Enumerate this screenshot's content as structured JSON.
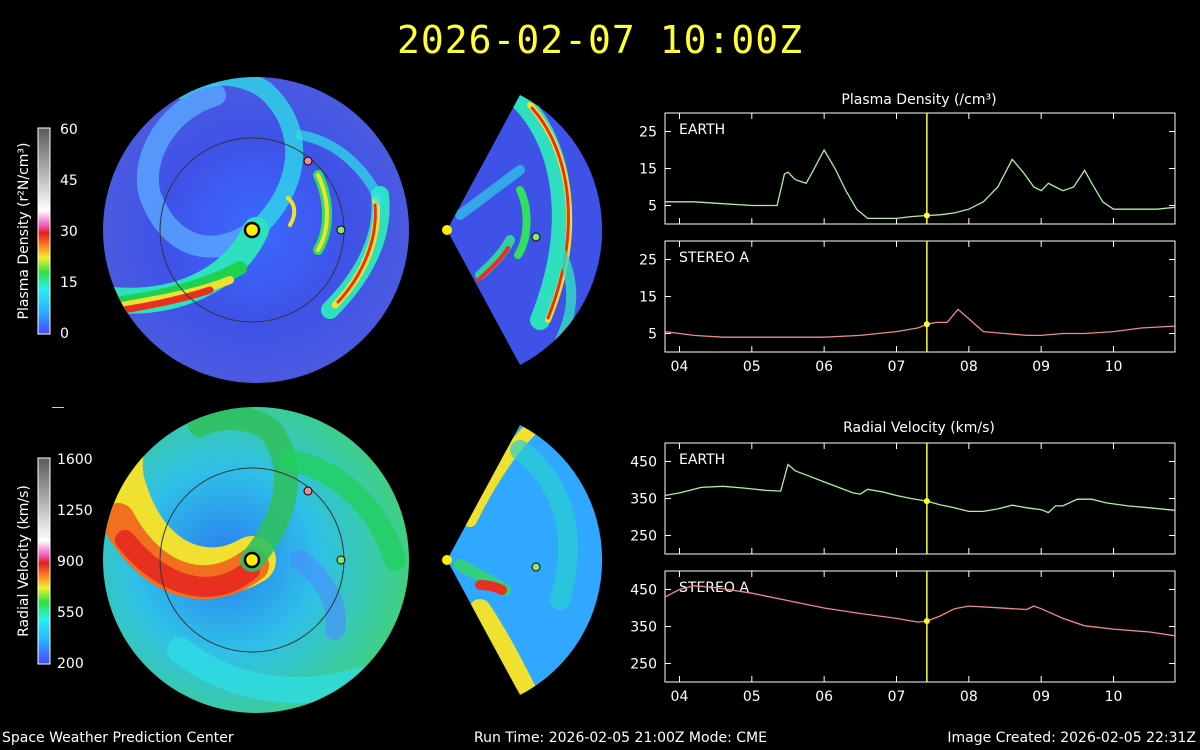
{
  "header": {
    "datetime": "2026-02-07 10:00Z"
  },
  "footer": {
    "org": "Space Weather Prediction Center",
    "run_info": "Run Time: 2026-02-05 21:00Z  Mode: CME",
    "created": "Image Created: 2026-02-05 22:31Z"
  },
  "colorbars": [
    {
      "label": "Plasma Density (r²N/cm³)",
      "ticks": [
        "60",
        "45",
        "30",
        "15",
        "0"
      ]
    },
    {
      "label": "Radial Velocity (km/s)",
      "ticks": [
        "1600",
        "1250",
        "900",
        "550",
        "200"
      ]
    }
  ],
  "colors": {
    "title": "#ffff33",
    "earth_line": "#aef0a0",
    "stereo_line": "#ee8a8a",
    "current_time_marker": "#ffff33",
    "earth_marker": "#8be36b",
    "stereo_marker": "#f08c8c"
  },
  "chart_data": [
    {
      "type": "line",
      "title": "Plasma Density (/cm³)",
      "panel": "EARTH",
      "ylim": [
        0,
        30
      ],
      "yticks": [
        5,
        15,
        25
      ],
      "xlim": [
        3.8,
        10.85
      ],
      "xticks": [
        "04",
        "05",
        "06",
        "07",
        "08",
        "09",
        "10"
      ],
      "current_time": 7.42,
      "series": [
        {
          "name": "EARTH",
          "x": [
            3.8,
            4.2,
            4.6,
            5.0,
            5.35,
            5.45,
            5.5,
            5.6,
            5.75,
            5.85,
            6.0,
            6.15,
            6.3,
            6.45,
            6.6,
            6.8,
            7.0,
            7.2,
            7.42,
            7.6,
            7.8,
            8.0,
            8.2,
            8.4,
            8.6,
            8.75,
            8.9,
            9.0,
            9.1,
            9.2,
            9.3,
            9.45,
            9.6,
            9.7,
            9.85,
            10.0,
            10.3,
            10.6,
            10.85
          ],
          "y": [
            6,
            6,
            5.5,
            5,
            5,
            13.5,
            14,
            12,
            11,
            14.5,
            20,
            15,
            9,
            4,
            1.5,
            1.5,
            1.5,
            2,
            2.3,
            2.5,
            3,
            4,
            6,
            10,
            17.5,
            14,
            10,
            9,
            11,
            10,
            9,
            10,
            14.5,
            11,
            6,
            4,
            4,
            4,
            4.5
          ]
        }
      ]
    },
    {
      "type": "line",
      "panel": "STEREO A",
      "ylim": [
        0,
        30
      ],
      "yticks": [
        5,
        15,
        25
      ],
      "xlim": [
        3.8,
        10.85
      ],
      "xticks": [
        "04",
        "05",
        "06",
        "07",
        "08",
        "09",
        "10"
      ],
      "current_time": 7.42,
      "series": [
        {
          "name": "STEREO A",
          "x": [
            3.8,
            4.2,
            4.6,
            5.0,
            5.5,
            6.0,
            6.5,
            7.0,
            7.3,
            7.42,
            7.55,
            7.7,
            7.85,
            8.0,
            8.2,
            8.5,
            8.8,
            9.0,
            9.3,
            9.6,
            10.0,
            10.4,
            10.85
          ],
          "y": [
            5.5,
            4.5,
            4,
            4,
            4,
            4,
            4.5,
            5.5,
            6.5,
            7.5,
            8,
            8,
            11.5,
            9,
            5.5,
            5,
            4.5,
            4.5,
            5,
            5,
            5.5,
            6.5,
            7
          ]
        }
      ]
    },
    {
      "type": "line",
      "title": "Radial Velocity (km/s)",
      "panel": "EARTH",
      "ylim": [
        200,
        500
      ],
      "yticks": [
        250,
        350,
        450
      ],
      "xlim": [
        3.8,
        10.85
      ],
      "xticks": [
        "04",
        "05",
        "06",
        "07",
        "08",
        "09",
        "10"
      ],
      "current_time": 7.42,
      "series": [
        {
          "name": "EARTH",
          "x": [
            3.8,
            4.0,
            4.3,
            4.6,
            4.9,
            5.2,
            5.4,
            5.5,
            5.6,
            5.8,
            6.0,
            6.2,
            6.4,
            6.5,
            6.6,
            6.8,
            7.0,
            7.2,
            7.42,
            7.6,
            7.8,
            8.0,
            8.2,
            8.4,
            8.6,
            8.8,
            9.0,
            9.1,
            9.2,
            9.3,
            9.5,
            9.7,
            9.9,
            10.2,
            10.5,
            10.85
          ],
          "y": [
            358,
            365,
            380,
            383,
            378,
            372,
            370,
            442,
            425,
            410,
            395,
            380,
            365,
            362,
            375,
            368,
            358,
            350,
            343,
            333,
            325,
            315,
            315,
            322,
            332,
            325,
            320,
            312,
            330,
            330,
            348,
            348,
            338,
            330,
            325,
            318
          ]
        }
      ]
    },
    {
      "type": "line",
      "panel": "STEREO A",
      "ylim": [
        200,
        500
      ],
      "yticks": [
        250,
        350,
        450
      ],
      "xlim": [
        3.8,
        10.85
      ],
      "xticks": [
        "04",
        "05",
        "06",
        "07",
        "08",
        "09",
        "10"
      ],
      "current_time": 7.42,
      "series": [
        {
          "name": "STEREO A",
          "x": [
            3.8,
            4.0,
            4.2,
            4.5,
            5.0,
            5.5,
            6.0,
            6.5,
            7.0,
            7.3,
            7.42,
            7.6,
            7.8,
            8.0,
            8.3,
            8.6,
            8.8,
            8.9,
            9.0,
            9.3,
            9.6,
            10.0,
            10.5,
            10.85
          ],
          "y": [
            430,
            450,
            460,
            455,
            440,
            420,
            400,
            385,
            372,
            362,
            365,
            378,
            398,
            405,
            402,
            398,
            396,
            405,
            398,
            372,
            352,
            343,
            335,
            325
          ]
        }
      ]
    }
  ]
}
